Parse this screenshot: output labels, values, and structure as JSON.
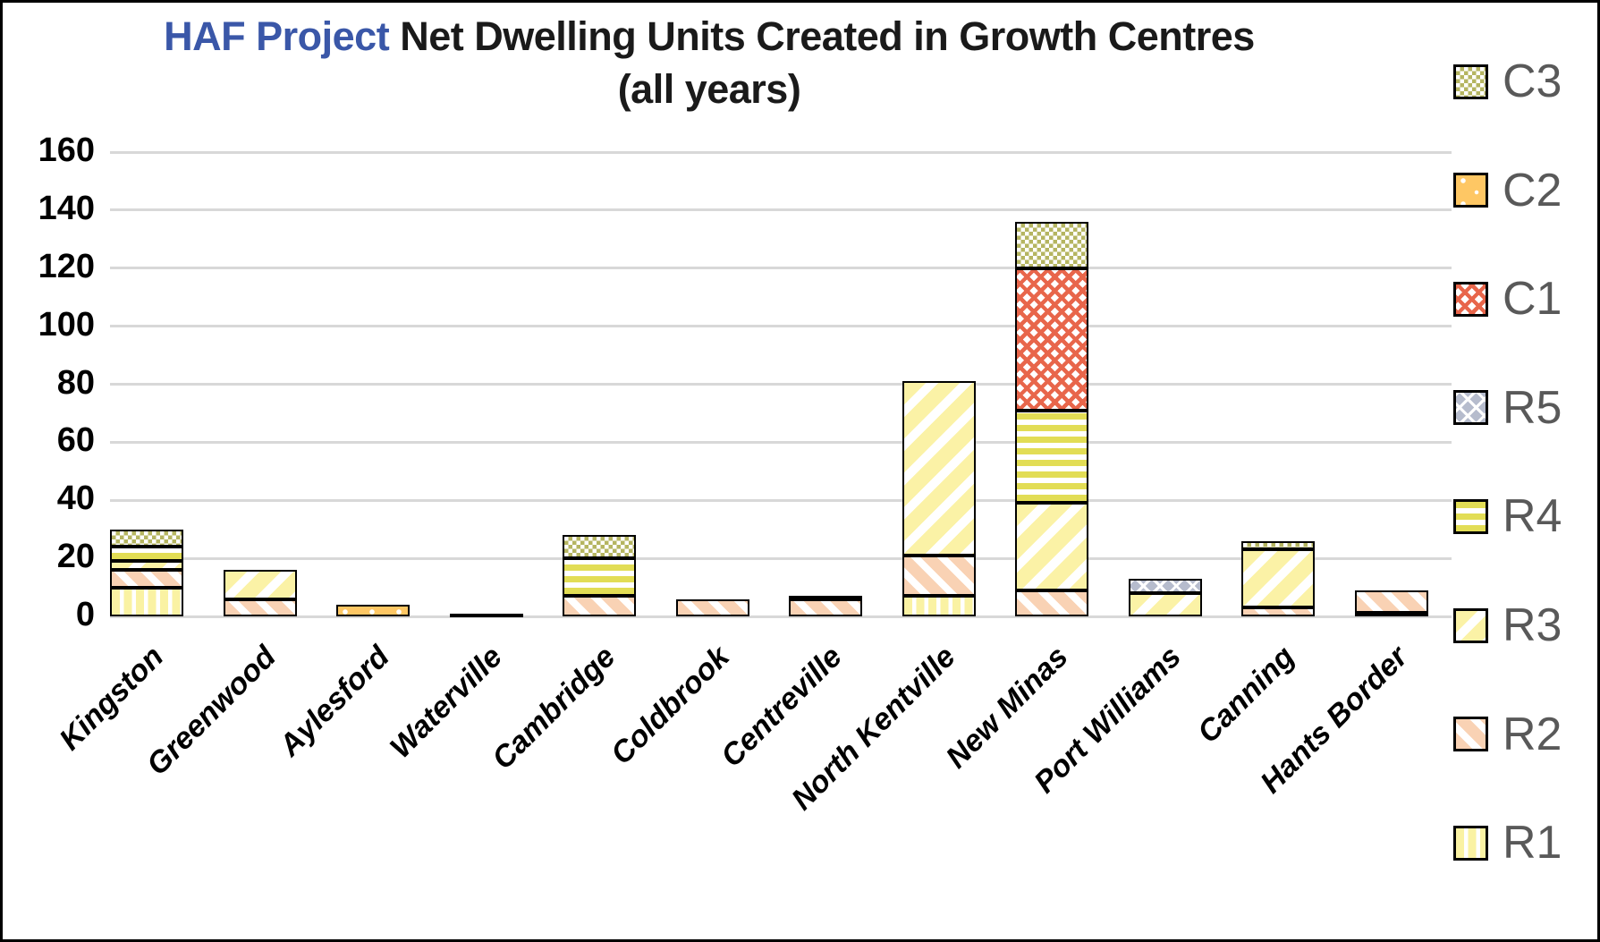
{
  "title": {
    "highlight": "HAF Project",
    "rest": " Net Dwelling Units Created in Growth Centres",
    "line2": "(all years)"
  },
  "colors": {
    "title_highlight": "#3a57a8",
    "title_text": "#1a1a1a",
    "legend_text": "#595959",
    "gridline": "#d8d8d8",
    "bar_border": "#000000",
    "R1": "#faf2a3",
    "R2": "#f9d2b4",
    "R3": "#fbf2a6",
    "R4": "#e2dd55",
    "R5": "#b6bccd",
    "C1": "#e8664b",
    "C2": "#fec764",
    "C3": "#b5b561"
  },
  "chart_data": {
    "type": "bar",
    "stacked": true,
    "title": "HAF Project Net Dwelling Units Created in Growth Centres (all years)",
    "xlabel": "",
    "ylabel": "",
    "ylim": [
      0,
      160
    ],
    "yticks": [
      0,
      20,
      40,
      60,
      80,
      100,
      120,
      140,
      160
    ],
    "grid": "horizontal",
    "legend_position": "right",
    "legend_order_top_to_bottom": [
      "C3",
      "C2",
      "C1",
      "R5",
      "R4",
      "R3",
      "R2",
      "R1"
    ],
    "categories": [
      "Kingston",
      "Greenwood",
      "Aylesford",
      "Waterville",
      "Cambridge",
      "Coldbrook",
      "Centreville",
      "North Kentville",
      "New Minas",
      "Port Williams",
      "Canning",
      "Hants Border"
    ],
    "series": [
      {
        "name": "R1",
        "pattern": "vertical-stripes-yellow",
        "values": [
          10,
          0,
          0,
          1,
          0,
          0,
          0,
          7,
          0,
          0,
          0,
          1
        ]
      },
      {
        "name": "R2",
        "pattern": "diagonal-stripes-peach",
        "values": [
          6,
          6,
          0,
          0,
          7,
          6,
          6,
          14,
          9,
          0,
          3,
          8
        ]
      },
      {
        "name": "R3",
        "pattern": "diagonal-stripes-yellow",
        "values": [
          3,
          10,
          0,
          0,
          0,
          0,
          0,
          60,
          30,
          8,
          20,
          0
        ]
      },
      {
        "name": "R4",
        "pattern": "horizontal-stripes-yellow",
        "values": [
          5,
          0,
          0,
          0,
          13,
          0,
          1,
          0,
          32,
          0,
          0,
          0
        ]
      },
      {
        "name": "R5",
        "pattern": "crosshatch-white-on-blue",
        "values": [
          0,
          0,
          0,
          0,
          0,
          0,
          0,
          0,
          0,
          5,
          0,
          0
        ]
      },
      {
        "name": "C1",
        "pattern": "crosshatch-red",
        "values": [
          0,
          0,
          0,
          0,
          0,
          0,
          0,
          0,
          49,
          0,
          0,
          0
        ]
      },
      {
        "name": "C2",
        "pattern": "solid-orange-dotted",
        "values": [
          0,
          0,
          4,
          0,
          0,
          0,
          0,
          0,
          0,
          0,
          0,
          0
        ]
      },
      {
        "name": "C3",
        "pattern": "checkerboard-olive",
        "values": [
          6,
          0,
          0,
          0,
          8,
          0,
          0,
          0,
          16,
          0,
          3,
          0
        ]
      }
    ],
    "totals": [
      30,
      16,
      4,
      1,
      28,
      6,
      7,
      81,
      136,
      13,
      26,
      9
    ]
  }
}
